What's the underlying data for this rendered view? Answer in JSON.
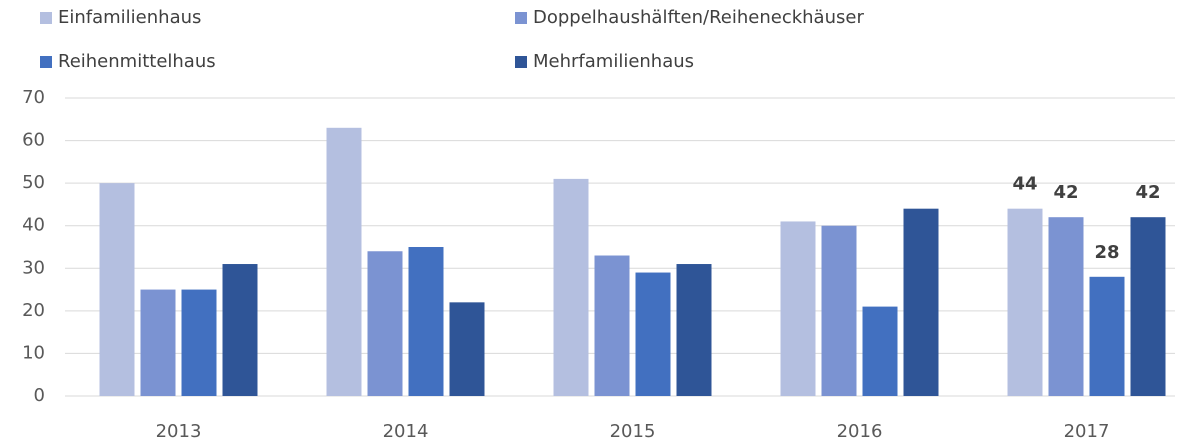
{
  "chart_data": {
    "type": "bar",
    "categories": [
      "2013",
      "2014",
      "2015",
      "2016",
      "2017"
    ],
    "series": [
      {
        "name": "Einfamilienhaus",
        "color": "#b4bfe0",
        "values": [
          50,
          63,
          51,
          41,
          44
        ]
      },
      {
        "name": "Doppelhaushälften/Reiheneckhäuser",
        "color": "#7b93d2",
        "values": [
          25,
          34,
          33,
          40,
          42
        ]
      },
      {
        "name": "Reihenmittelhaus",
        "color": "#4270c0",
        "values": [
          25,
          35,
          29,
          21,
          28
        ]
      },
      {
        "name": "Mehrfamilienhaus",
        "color": "#2f5597",
        "values": [
          31,
          22,
          31,
          44,
          42
        ]
      }
    ],
    "ylim": [
      0,
      70
    ],
    "yticks": [
      0,
      10,
      20,
      30,
      40,
      50,
      60,
      70
    ],
    "grid": true,
    "legend": "top",
    "data_labels": "last"
  }
}
